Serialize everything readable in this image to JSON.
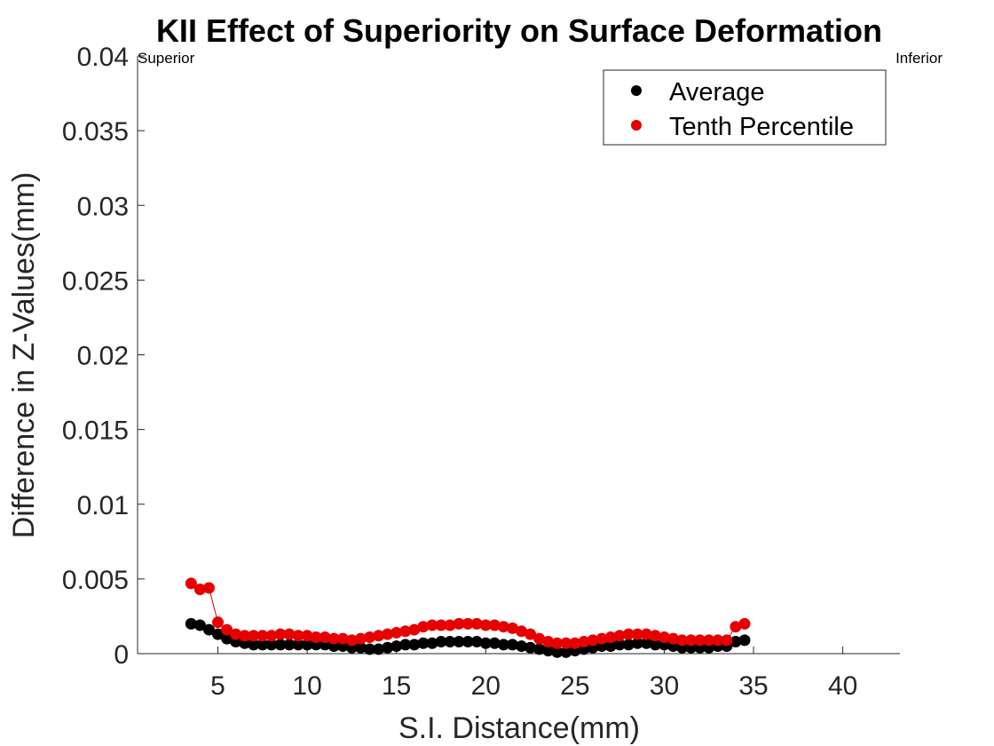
{
  "chart_data": {
    "type": "scatter",
    "title": "KII  Effect of Superiority on Surface Deformation",
    "xlabel": "S.I. Distance(mm)",
    "ylabel": "Difference in Z-Values(mm)",
    "xlim": [
      0.5,
      43.2
    ],
    "ylim": [
      0,
      0.04
    ],
    "xticks": [
      5,
      10,
      15,
      20,
      25,
      30,
      35,
      40
    ],
    "xtick_labels": [
      "5",
      "10",
      "15",
      "20",
      "25",
      "30",
      "35",
      "40"
    ],
    "yticks": [
      0,
      0.005,
      0.01,
      0.015,
      0.02,
      0.025,
      0.03,
      0.035,
      0.04
    ],
    "ytick_labels": [
      "0",
      "0.005",
      "0.01",
      "0.015",
      "0.02",
      "0.025",
      "0.03",
      "0.035",
      "0.04"
    ],
    "grid": false,
    "legend_position": "top-right",
    "corner_labels": {
      "left": "Superior",
      "right": "Inferior"
    },
    "series": [
      {
        "name": "Average",
        "color": "#000000",
        "marker": "circle",
        "line": false,
        "x": [
          3.5,
          4.0,
          4.5,
          5.0,
          5.5,
          6.0,
          6.5,
          7.0,
          7.5,
          8.0,
          8.5,
          9.0,
          9.5,
          10.0,
          10.5,
          11.0,
          11.5,
          12.0,
          12.5,
          13.0,
          13.5,
          14.0,
          14.5,
          15.0,
          15.5,
          16.0,
          16.5,
          17.0,
          17.5,
          18.0,
          18.5,
          19.0,
          19.5,
          20.0,
          20.5,
          21.0,
          21.5,
          22.0,
          22.5,
          23.0,
          23.5,
          24.0,
          24.5,
          25.0,
          25.5,
          26.0,
          26.5,
          27.0,
          27.5,
          28.0,
          28.5,
          29.0,
          29.5,
          30.0,
          30.5,
          31.0,
          31.5,
          32.0,
          32.5,
          33.0,
          33.5,
          34.0,
          34.5
        ],
        "y": [
          0.002,
          0.0019,
          0.0016,
          0.0013,
          0.001,
          0.0008,
          0.0007,
          0.0006,
          0.0006,
          0.0006,
          0.0006,
          0.0006,
          0.0006,
          0.0006,
          0.0006,
          0.0006,
          0.0005,
          0.0005,
          0.0004,
          0.0004,
          0.0003,
          0.0003,
          0.0004,
          0.0005,
          0.0006,
          0.0006,
          0.0007,
          0.0007,
          0.0008,
          0.0008,
          0.0008,
          0.0008,
          0.0008,
          0.0007,
          0.0007,
          0.0006,
          0.0006,
          0.0005,
          0.0004,
          0.0003,
          0.0002,
          0.0001,
          0.0001,
          0.0002,
          0.0003,
          0.0004,
          0.0005,
          0.0005,
          0.0006,
          0.0006,
          0.0007,
          0.0007,
          0.0006,
          0.0006,
          0.0005,
          0.0004,
          0.0004,
          0.0004,
          0.0004,
          0.0005,
          0.0005,
          0.0008,
          0.0009
        ]
      },
      {
        "name": "Tenth Percentile",
        "color": "#e60000",
        "marker": "circle",
        "line": true,
        "x": [
          3.5,
          4.0,
          4.5,
          5.0,
          5.5,
          6.0,
          6.5,
          7.0,
          7.5,
          8.0,
          8.5,
          9.0,
          9.5,
          10.0,
          10.5,
          11.0,
          11.5,
          12.0,
          12.5,
          13.0,
          13.5,
          14.0,
          14.5,
          15.0,
          15.5,
          16.0,
          16.5,
          17.0,
          17.5,
          18.0,
          18.5,
          19.0,
          19.5,
          20.0,
          20.5,
          21.0,
          21.5,
          22.0,
          22.5,
          23.0,
          23.5,
          24.0,
          24.5,
          25.0,
          25.5,
          26.0,
          26.5,
          27.0,
          27.5,
          28.0,
          28.5,
          29.0,
          29.5,
          30.0,
          30.5,
          31.0,
          31.5,
          32.0,
          32.5,
          33.0,
          33.5,
          34.0,
          34.5
        ],
        "y": [
          0.0047,
          0.0043,
          0.0044,
          0.0021,
          0.0016,
          0.0013,
          0.0012,
          0.0012,
          0.0012,
          0.0012,
          0.0013,
          0.0013,
          0.0012,
          0.0012,
          0.0011,
          0.0011,
          0.001,
          0.001,
          0.0009,
          0.001,
          0.0011,
          0.0012,
          0.0013,
          0.0014,
          0.0015,
          0.0016,
          0.0018,
          0.0019,
          0.0019,
          0.0019,
          0.002,
          0.002,
          0.002,
          0.0019,
          0.0019,
          0.0018,
          0.0017,
          0.0015,
          0.0013,
          0.001,
          0.0008,
          0.0007,
          0.0007,
          0.0007,
          0.0008,
          0.0009,
          0.001,
          0.0011,
          0.0012,
          0.0013,
          0.0013,
          0.0013,
          0.0012,
          0.0011,
          0.001,
          0.0009,
          0.0009,
          0.0009,
          0.0009,
          0.0009,
          0.0009,
          0.0018,
          0.002
        ]
      }
    ]
  }
}
